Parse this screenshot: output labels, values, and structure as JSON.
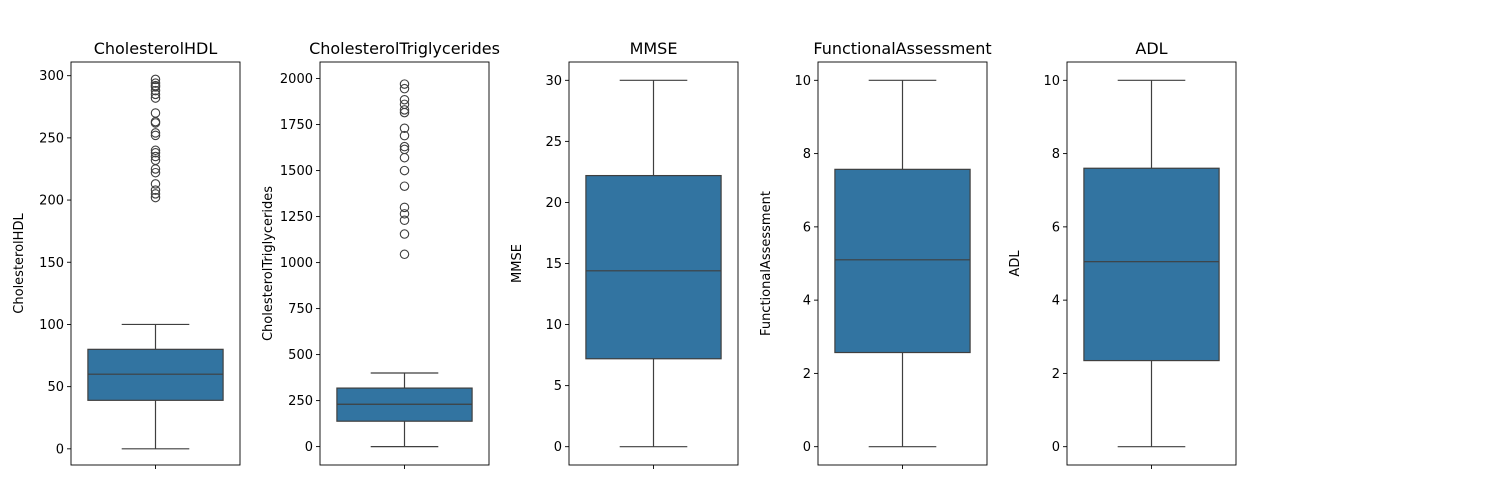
{
  "chart_data": [
    {
      "type": "box",
      "title": "CholesterolHDL",
      "ylabel": "CholesterolHDL",
      "ylim": [
        -13,
        311
      ],
      "yticks": [
        0,
        50,
        100,
        150,
        200,
        250,
        300
      ],
      "box": {
        "whisker_low": 0,
        "q1": 39,
        "median": 60,
        "q3": 80,
        "whisker_high": 100
      },
      "outliers": [
        202,
        205,
        208,
        213,
        222,
        225,
        232,
        235,
        238,
        240,
        252,
        254,
        262,
        263,
        270,
        282,
        285,
        288,
        291,
        292,
        294,
        297
      ],
      "color": "#3274a1"
    },
    {
      "type": "box",
      "title": "CholesterolTriglycerides",
      "ylabel": "CholesterolTriglycerides",
      "ylim": [
        -100,
        2090
      ],
      "yticks": [
        0,
        250,
        500,
        750,
        1000,
        1250,
        1500,
        1750,
        2000
      ],
      "box": {
        "whisker_low": 0,
        "q1": 138,
        "median": 230,
        "q3": 318,
        "whisker_high": 400
      },
      "outliers": [
        1045,
        1155,
        1230,
        1265,
        1300,
        1415,
        1500,
        1570,
        1615,
        1630,
        1690,
        1730,
        1815,
        1830,
        1860,
        1885,
        1945,
        1970
      ],
      "color": "#3274a1"
    },
    {
      "type": "box",
      "title": "MMSE",
      "ylabel": "MMSE",
      "ylim": [
        -1.5,
        31.5
      ],
      "yticks": [
        0,
        5,
        10,
        15,
        20,
        25,
        30
      ],
      "box": {
        "whisker_low": 0,
        "q1": 7.2,
        "median": 14.4,
        "q3": 22.2,
        "whisker_high": 30
      },
      "outliers": [],
      "color": "#3274a1"
    },
    {
      "type": "box",
      "title": "FunctionalAssessment",
      "ylabel": "FunctionalAssessment",
      "ylim": [
        -0.5,
        10.5
      ],
      "yticks": [
        0,
        2,
        4,
        6,
        8,
        10
      ],
      "box": {
        "whisker_low": 0,
        "q1": 2.57,
        "median": 5.1,
        "q3": 7.57,
        "whisker_high": 10
      },
      "outliers": [],
      "color": "#3274a1"
    },
    {
      "type": "box",
      "title": "ADL",
      "ylabel": "ADL",
      "ylim": [
        -0.5,
        10.5
      ],
      "yticks": [
        0,
        2,
        4,
        6,
        8,
        10
      ],
      "box": {
        "whisker_low": 0,
        "q1": 2.35,
        "median": 5.05,
        "q3": 7.6,
        "whisker_high": 10
      },
      "outliers": [],
      "color": "#3274a1"
    }
  ]
}
